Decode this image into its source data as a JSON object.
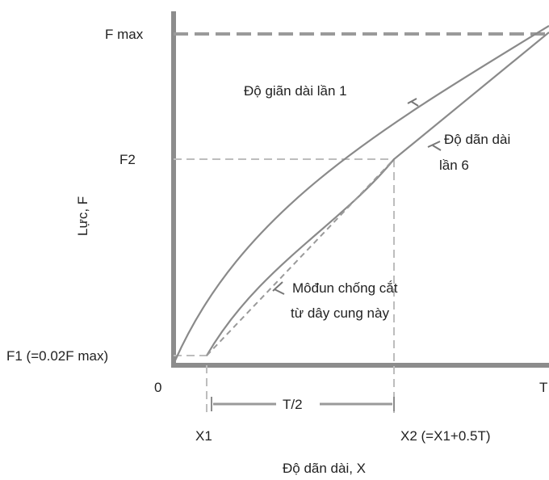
{
  "labels": {
    "fmax": "F max",
    "f2": "F2",
    "f1": "F1 (=0.02F max)",
    "origin": "0",
    "t": "T",
    "x1": "X1",
    "x2": "X2 (=X1+0.5T)",
    "half_t": "T/2",
    "y_axis": "Lực, F",
    "x_axis": "Độ dãn dài, X",
    "curve1": "Độ giãn dài lần 1",
    "curve6_line1": "Độ dãn dài",
    "curve6_line2": "lần 6",
    "modulus_line1": "Môđun chống cắt",
    "modulus_line2": "từ dây cung này"
  },
  "colors": {
    "axis": "#8c8c8c",
    "curve": "#8a8a8a",
    "guide": "#bdbdbd",
    "text": "#222222"
  }
}
